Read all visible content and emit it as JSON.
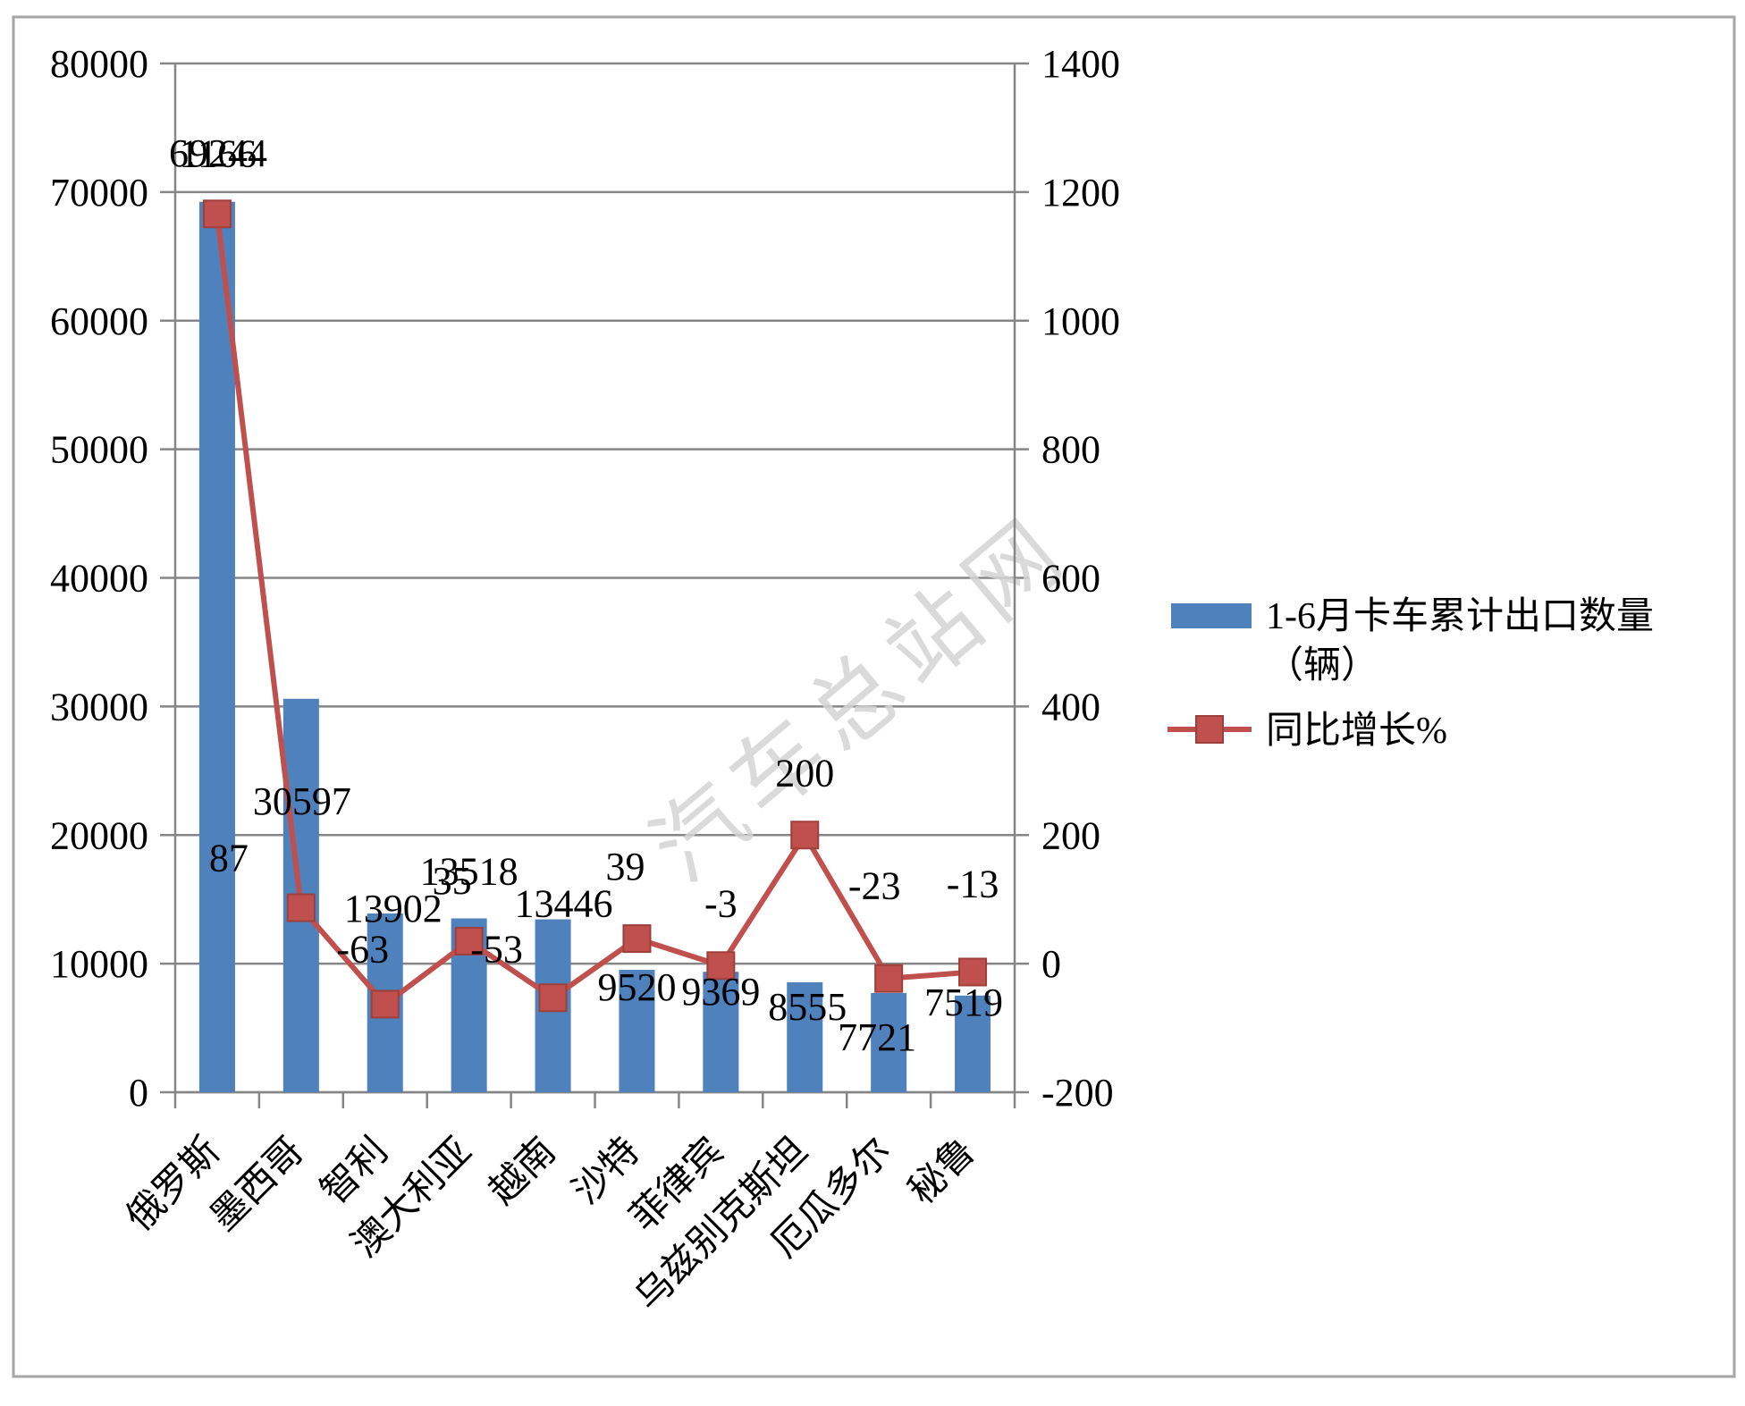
{
  "chart_data": {
    "type": "bar",
    "categories": [
      "俄罗斯",
      "墨西哥",
      "智利",
      "澳大利亚",
      "越南",
      "沙特",
      "菲律宾",
      "乌兹别克斯坦",
      "厄瓜多尔",
      "秘鲁"
    ],
    "series": [
      {
        "name": "1-6月卡车累计出口数量（辆）",
        "type": "bar",
        "axis": "left",
        "color": "#4f81bd",
        "values": [
          69244,
          30597,
          13902,
          13518,
          13446,
          9520,
          9369,
          8555,
          7721,
          7519
        ]
      },
      {
        "name": "同比增长%",
        "type": "line",
        "axis": "right",
        "color": "#c0504d",
        "marker": "square",
        "values": [
          1166,
          87,
          -63,
          35,
          -53,
          39,
          -3,
          200,
          -23,
          -13
        ]
      }
    ],
    "y_left": {
      "min": 0,
      "max": 80000,
      "ticks": [
        0,
        10000,
        20000,
        30000,
        40000,
        50000,
        60000,
        70000,
        80000
      ]
    },
    "y_right": {
      "min": -200,
      "max": 1400,
      "ticks": [
        -200,
        0,
        200,
        400,
        600,
        800,
        1000,
        1200,
        1400
      ]
    },
    "grid": true,
    "data_labels": true,
    "legend": "right"
  },
  "watermark": "汽车总站网"
}
